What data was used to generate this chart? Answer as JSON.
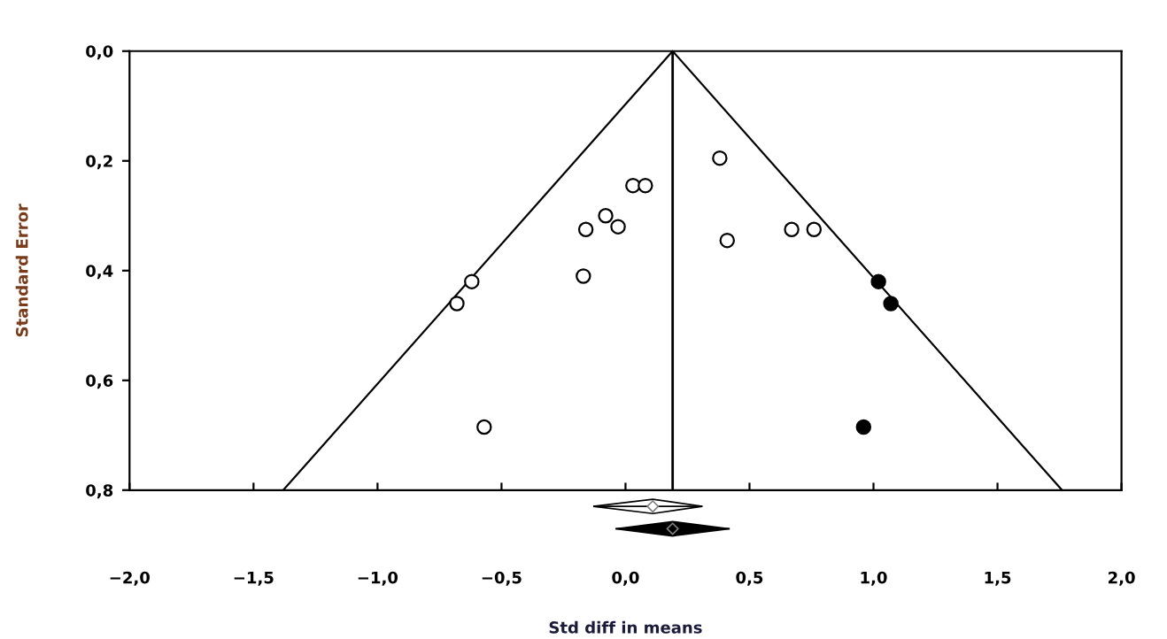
{
  "chart_data": [
    {
      "type": "scatter",
      "ylabel": "Standard Error",
      "xlabel": "Std diff in means",
      "xlim": [
        -2.0,
        2.0
      ],
      "ylim": [
        0.8,
        0.0
      ],
      "xticks": [
        {
          "value": -2.0,
          "label": "−2,0"
        },
        {
          "value": -1.5,
          "label": "−1,5"
        },
        {
          "value": -1.0,
          "label": "−1,0"
        },
        {
          "value": -0.5,
          "label": "−0,5"
        },
        {
          "value": 0.0,
          "label": "0,0"
        },
        {
          "value": 0.5,
          "label": "0,5"
        },
        {
          "value": 1.0,
          "label": "1,0"
        },
        {
          "value": 1.5,
          "label": "1,5"
        },
        {
          "value": 2.0,
          "label": "2,0"
        }
      ],
      "yticks": [
        {
          "value": 0.0,
          "label": "0,0"
        },
        {
          "value": 0.2,
          "label": "0,2"
        },
        {
          "value": 0.4,
          "label": "0,4"
        },
        {
          "value": 0.6,
          "label": "0,6"
        },
        {
          "value": 0.8,
          "label": "0,8"
        }
      ],
      "grid": false,
      "legend": false,
      "marker": "circle",
      "ref_lines": [
        {
          "axis": "x",
          "value": 0.19,
          "color": "#000000"
        }
      ],
      "series": [
        {
          "color": "#ffffff",
          "x": [
            0.38,
            0.41,
            0.67,
            0.76,
            0.03,
            0.08,
            -0.08,
            -0.03,
            -0.16,
            -0.17,
            -0.62,
            -0.68,
            -0.57
          ],
          "values": [
            0.195,
            0.345,
            0.325,
            0.325,
            0.245,
            0.245,
            0.3,
            0.32,
            0.325,
            0.41,
            0.42,
            0.46,
            0.685
          ]
        },
        {
          "color": "#000000",
          "x": [
            1.02,
            1.07,
            0.96
          ],
          "values": [
            0.42,
            0.46,
            0.685
          ]
        },
        {
          "type": "line",
          "color": "#000000",
          "marker": "none",
          "x": [
            -1.38,
            0.19,
            1.76
          ],
          "values": [
            0.8,
            0.0,
            0.8
          ]
        }
      ]
    },
    {
      "type": "scatter",
      "orientation": "horizontal",
      "xlim": [
        -2.0,
        2.0
      ],
      "marker": "diamond",
      "categories": [
        null,
        null
      ],
      "values": [
        0.11,
        0.19
      ],
      "errors": [
        [
          -0.13,
          0.31
        ],
        [
          -0.04,
          0.42
        ]
      ],
      "colors": [
        "#ffffff",
        "#000000"
      ]
    }
  ]
}
